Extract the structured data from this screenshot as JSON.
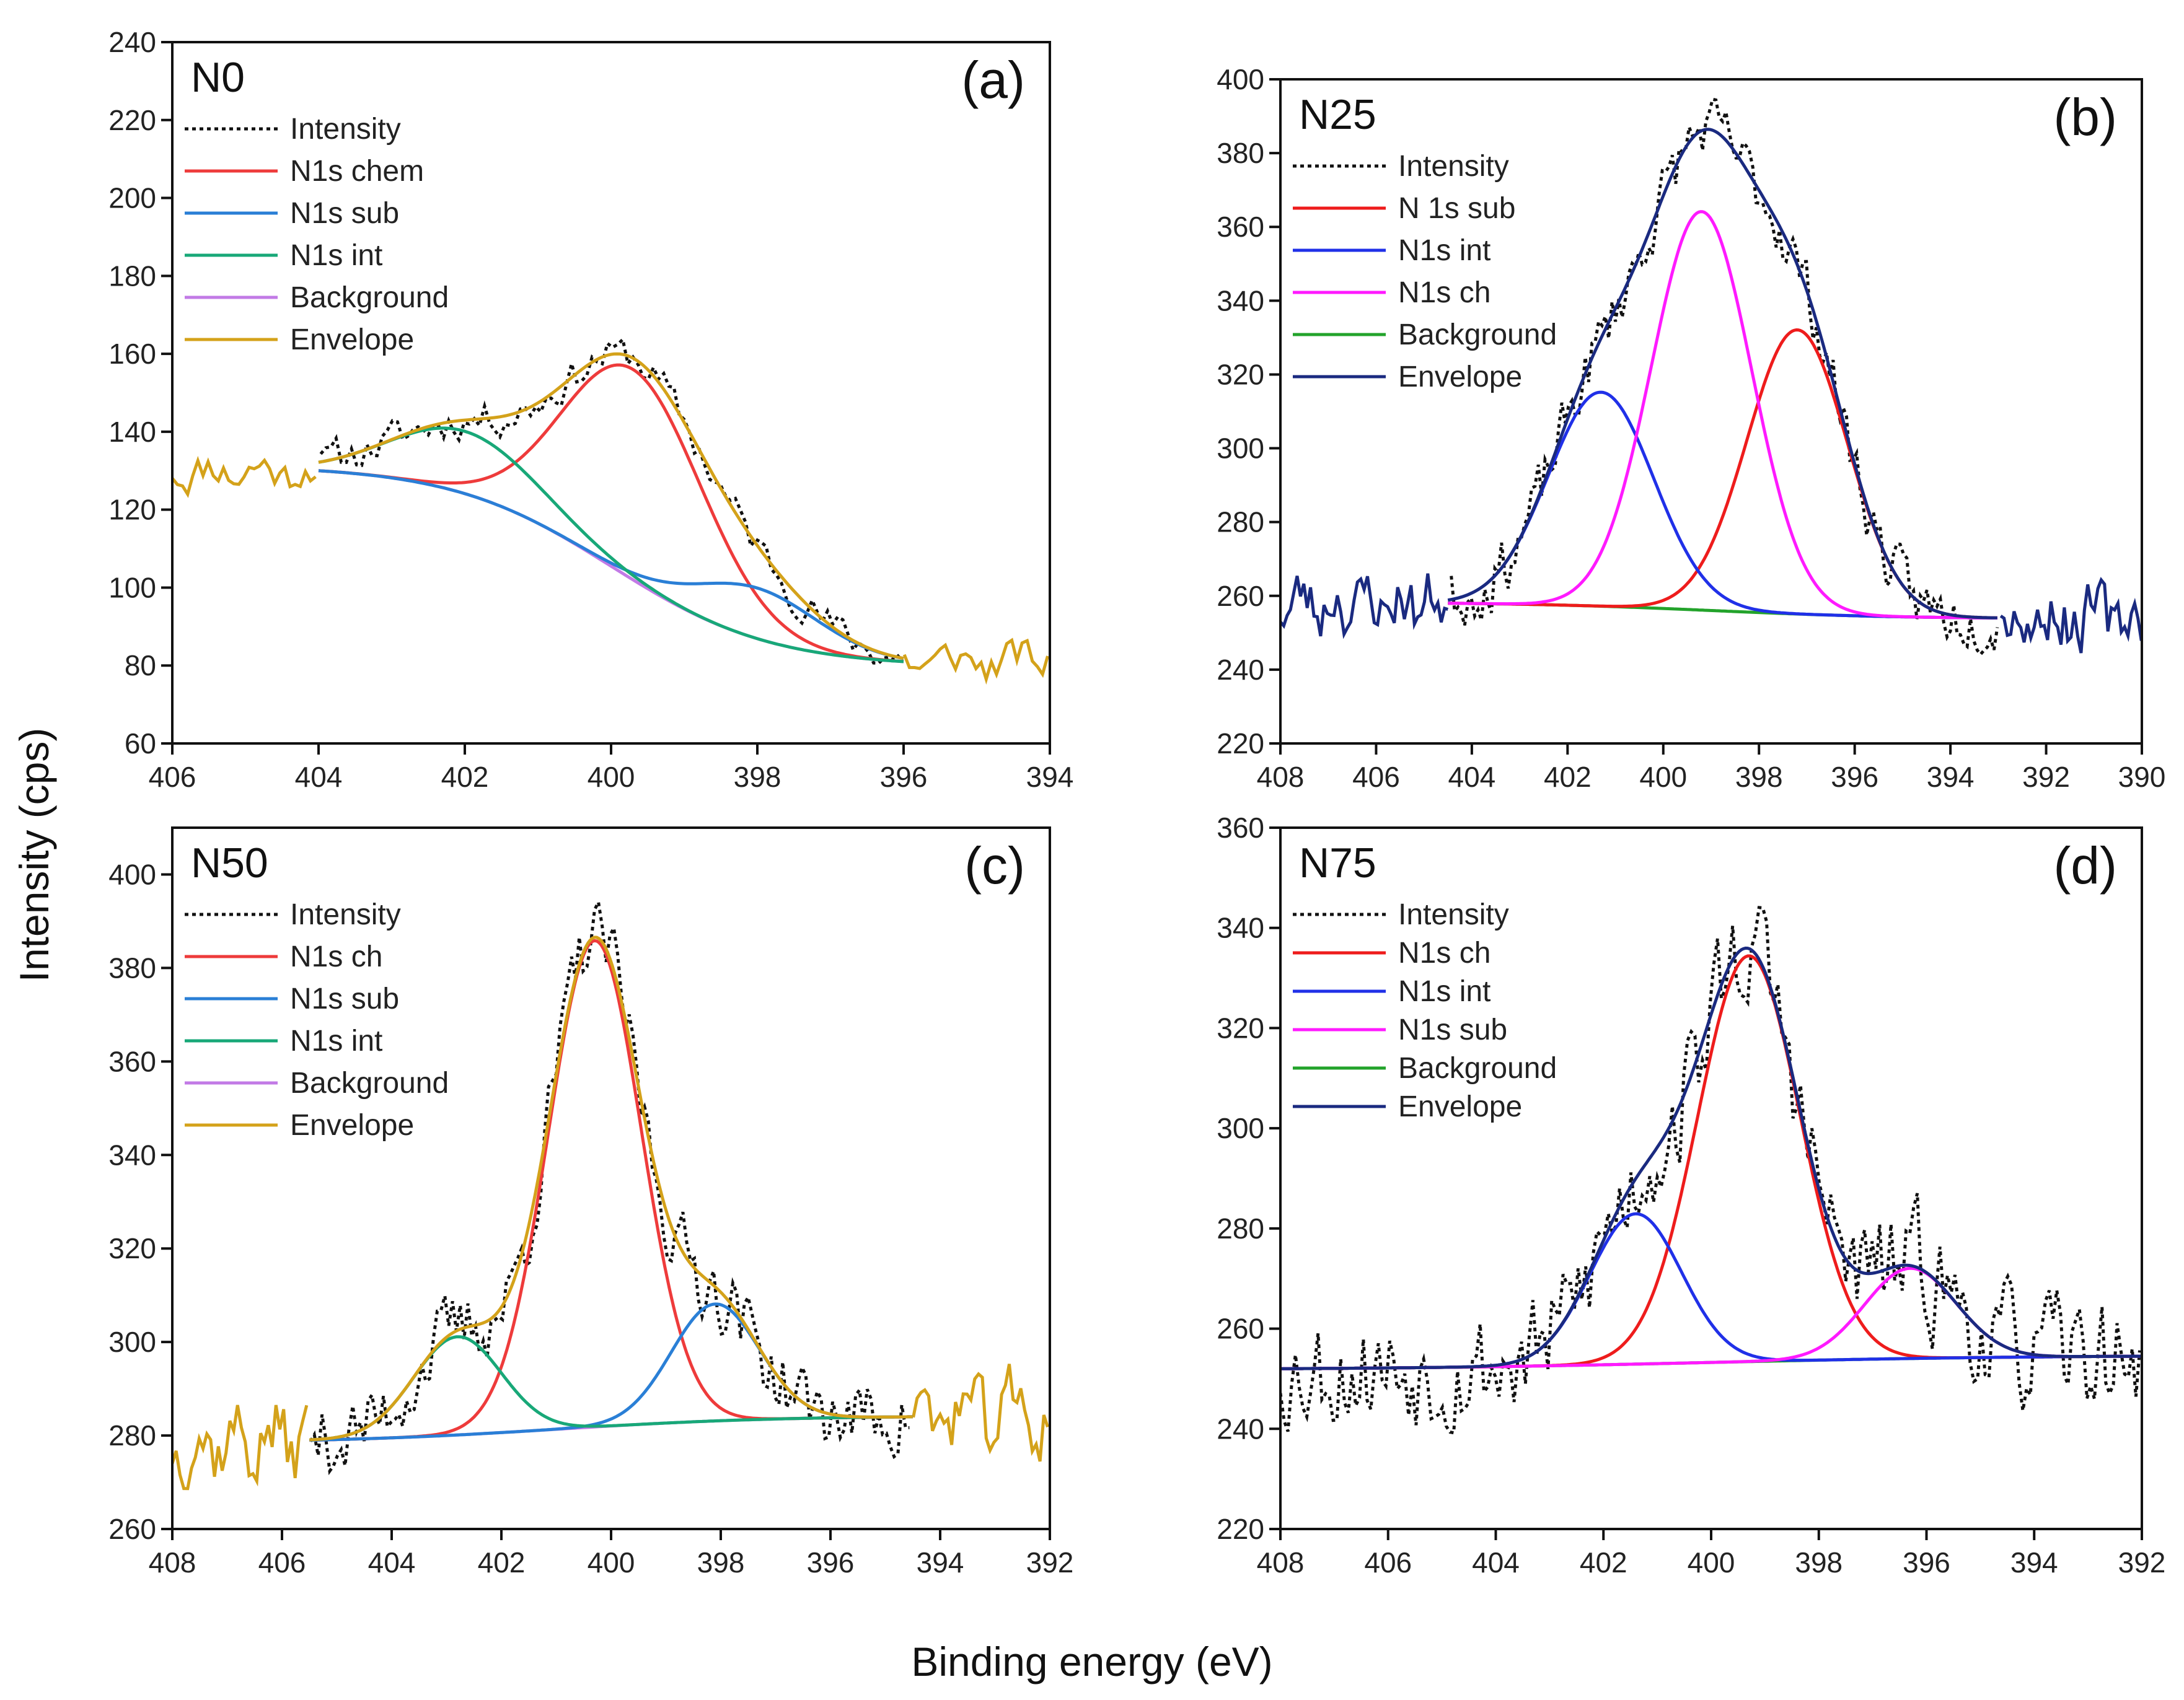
{
  "figure": {
    "ylabel": "Intensity (cps)",
    "xlabel": "Binding energy (eV)"
  },
  "colors": {
    "intensity": "#111111",
    "red": "#ee3b3b",
    "blue": "#2a7fd6",
    "green": "#18a878",
    "purple": "#c27ae6",
    "gold": "#d4a21a",
    "navy": "#1a2a80",
    "magenta": "#ff1aff",
    "green2": "#23a32b",
    "red2": "#ee1c1c",
    "blue2": "#2030e8"
  },
  "chart_data": [
    {
      "id": "a",
      "type": "line",
      "sample": "N0",
      "panel_label": "(a)",
      "xlim": [
        406,
        394
      ],
      "ylim": [
        60,
        240
      ],
      "xticks": [
        406,
        404,
        402,
        400,
        398,
        396,
        394
      ],
      "yticks": [
        60,
        80,
        100,
        120,
        140,
        160,
        180,
        200,
        220,
        240
      ],
      "xlabel": "Binding energy (eV)",
      "ylabel": "Intensity (cps)",
      "bg": {
        "x0": 404,
        "x1": 396,
        "ystart": 130,
        "yend": 81,
        "center": 400,
        "width": 1.1
      },
      "peaks": [
        {
          "name": "N1s chem",
          "center": 399.7,
          "amp": 54,
          "sigma": 0.95,
          "color_key": "red"
        },
        {
          "name": "N1s sub",
          "center": 398.0,
          "amp": 13,
          "sigma": 0.85,
          "color_key": "blue"
        },
        {
          "name": "N1s int",
          "center": 402.0,
          "amp": 16,
          "sigma": 1.0,
          "color_key": "green"
        }
      ],
      "noise": {
        "full": [
          406,
          394
        ],
        "fit": [
          404,
          396
        ],
        "amp": 4,
        "seed": 11
      },
      "legend": [
        "Intensity",
        "N1s chem",
        "N1s sub",
        "N1s int",
        "Background",
        "Envelope"
      ],
      "legend_colors": [
        "intensity",
        "red",
        "blue",
        "green",
        "purple",
        "gold"
      ],
      "envelope_color": "gold",
      "bg_color": "purple",
      "outer_color": "gold"
    },
    {
      "id": "b",
      "type": "line",
      "sample": "N25",
      "panel_label": "(b)",
      "xlim": [
        408,
        390
      ],
      "ylim": [
        220,
        400
      ],
      "xticks": [
        408,
        406,
        404,
        402,
        400,
        398,
        396,
        394,
        392,
        390
      ],
      "yticks": [
        220,
        240,
        260,
        280,
        300,
        320,
        340,
        360,
        380,
        400
      ],
      "xlabel": "Binding energy (eV)",
      "ylabel": "Intensity (cps)",
      "bg": {
        "x0": 404.5,
        "x1": 393,
        "ystart": 258,
        "yend": 254,
        "center": 399,
        "width": 2.0
      },
      "peaks": [
        {
          "name": "N 1s sub",
          "center": 397.2,
          "amp": 77,
          "sigma": 1.05,
          "color_key": "red2"
        },
        {
          "name": "N1s int",
          "center": 401.3,
          "amp": 58,
          "sigma": 1.1,
          "color_key": "blue2"
        },
        {
          "name": "N1s ch",
          "center": 399.2,
          "amp": 108,
          "sigma": 1.05,
          "color_key": "magenta"
        }
      ],
      "noise": {
        "full": [
          408,
          390
        ],
        "fit": [
          404.5,
          393
        ],
        "amp": 7,
        "seed": 23
      },
      "legend": [
        "Intensity",
        "N 1s sub",
        "N1s int",
        "N1s ch",
        "Background",
        "Envelope"
      ],
      "legend_colors": [
        "intensity",
        "red2",
        "blue2",
        "magenta",
        "green2",
        "navy"
      ],
      "envelope_color": "navy",
      "bg_color": "green2",
      "outer_color": "navy"
    },
    {
      "id": "c",
      "type": "line",
      "sample": "N50",
      "panel_label": "(c)",
      "xlim": [
        408,
        392
      ],
      "ylim": [
        260,
        410
      ],
      "xticks": [
        408,
        406,
        404,
        402,
        400,
        398,
        396,
        394,
        392
      ],
      "yticks": [
        260,
        280,
        300,
        320,
        340,
        360,
        380,
        400
      ],
      "xlabel": "Binding energy (eV)",
      "ylabel": "Intensity (cps)",
      "bg": {
        "x0": 405.5,
        "x1": 394.5,
        "ystart": 279,
        "yend": 284,
        "center": 401,
        "width": 2.0
      },
      "peaks": [
        {
          "name": "N1s ch",
          "center": 400.3,
          "amp": 104,
          "sigma": 0.85,
          "color_key": "red"
        },
        {
          "name": "N1s sub",
          "center": 398.1,
          "amp": 25,
          "sigma": 0.8,
          "color_key": "blue"
        },
        {
          "name": "N1s int",
          "center": 402.8,
          "amp": 21,
          "sigma": 0.8,
          "color_key": "green"
        }
      ],
      "noise": {
        "full": [
          408,
          392
        ],
        "fit": [
          405.5,
          394.5
        ],
        "amp": 7,
        "seed": 37
      },
      "legend": [
        "Intensity",
        "N1s ch",
        "N1s sub",
        "N1s int",
        "Background",
        "Envelope"
      ],
      "legend_colors": [
        "intensity",
        "red",
        "blue",
        "green",
        "purple",
        "gold"
      ],
      "envelope_color": "gold",
      "bg_color": "purple",
      "outer_color": "gold"
    },
    {
      "id": "d",
      "type": "line",
      "sample": "N75",
      "panel_label": "(d)",
      "xlim": [
        408,
        392
      ],
      "ylim": [
        220,
        360
      ],
      "xticks": [
        408,
        406,
        404,
        402,
        400,
        398,
        396,
        394,
        392
      ],
      "yticks": [
        220,
        240,
        260,
        280,
        300,
        320,
        340,
        360
      ],
      "xlabel": "Binding energy (eV)",
      "ylabel": "Intensity (cps)",
      "bg": {
        "x0": 408,
        "x1": 392,
        "ystart": 252,
        "yend": 254.5,
        "center": 400,
        "width": 3.0
      },
      "peaks": [
        {
          "name": "N1s ch",
          "center": 399.3,
          "amp": 81,
          "sigma": 0.95,
          "color_key": "red2"
        },
        {
          "name": "N1s int",
          "center": 401.4,
          "amp": 30,
          "sigma": 0.85,
          "color_key": "blue2"
        },
        {
          "name": "N1s sub",
          "center": 396.3,
          "amp": 18,
          "sigma": 0.85,
          "color_key": "magenta"
        }
      ],
      "noise": {
        "full": [
          408,
          392
        ],
        "fit": [
          408,
          392
        ],
        "amp": 10,
        "seed": 53
      },
      "legend": [
        "Intensity",
        "N1s ch",
        "N1s int",
        "N1s sub",
        "Background",
        "Envelope"
      ],
      "legend_colors": [
        "intensity",
        "red2",
        "blue2",
        "magenta",
        "green2",
        "navy"
      ],
      "envelope_color": "navy",
      "bg_color": "green2",
      "outer_color": null
    }
  ]
}
